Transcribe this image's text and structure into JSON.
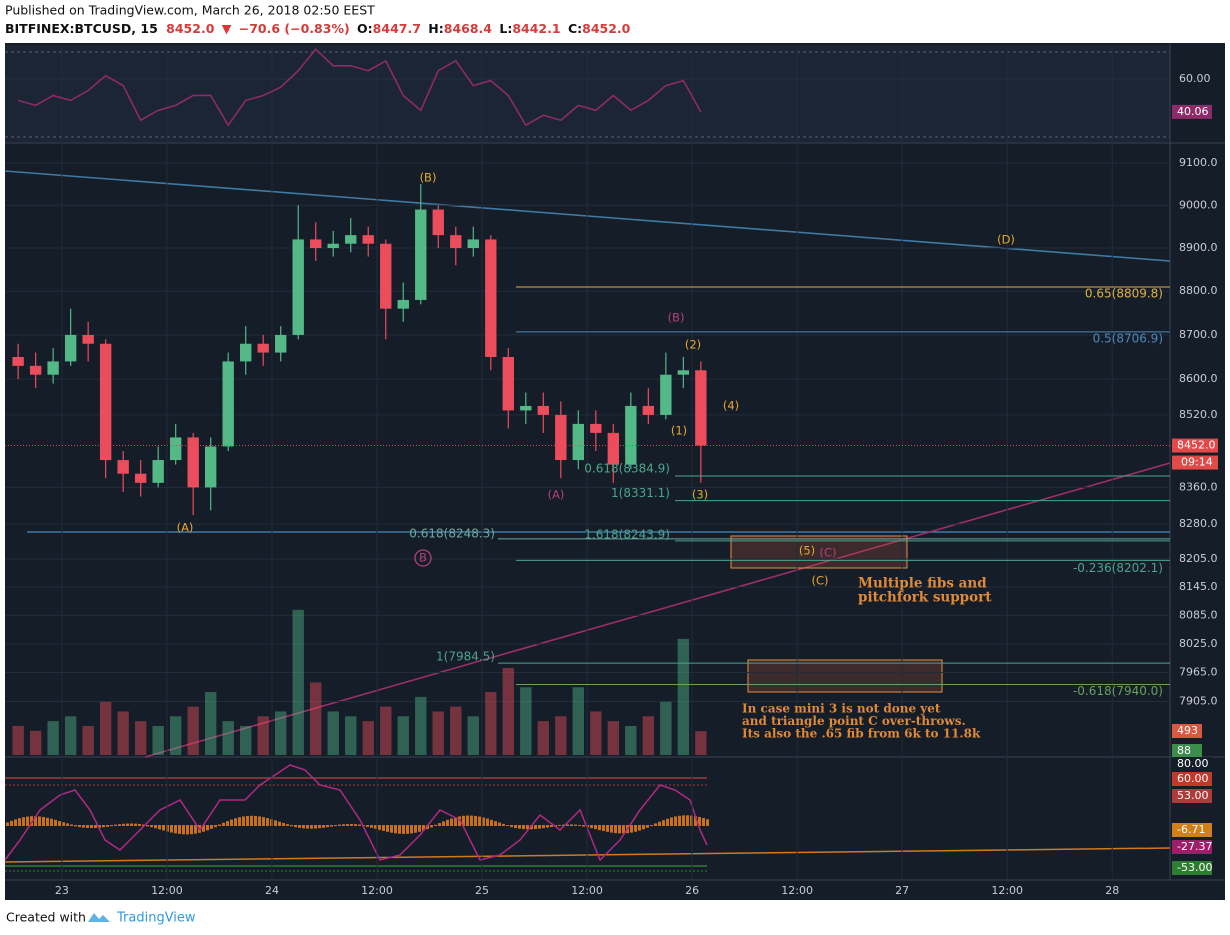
{
  "header": {
    "published": "Published on TradingView.com, March 26, 2018 02:50 EEST",
    "symbol": "BITFINEX:BTCUSD, 15",
    "price": "8452.0",
    "arrow": "▼",
    "change": "−70.6 (−0.83%)",
    "ohlc": [
      {
        "label": "O:",
        "value": "8447.7"
      },
      {
        "label": "H:",
        "value": "8468.4"
      },
      {
        "label": "L:",
        "value": "8442.1"
      },
      {
        "label": "C:",
        "value": "8452.0"
      }
    ]
  },
  "footer": {
    "created": "Created with",
    "brand": "TradingView"
  },
  "chart_data": {
    "type": "candlestick",
    "x": [
      -6,
      -4,
      -2,
      0,
      2,
      4,
      6,
      8,
      10,
      12,
      14,
      16,
      18,
      20,
      22,
      24,
      26,
      28,
      30,
      32,
      34,
      36,
      38,
      40,
      42,
      44,
      46,
      48,
      50,
      52,
      54,
      56,
      58,
      60,
      62,
      64,
      66,
      68,
      70,
      72
    ],
    "open": [
      8650,
      8630,
      8610,
      8640,
      8700,
      8680,
      8420,
      8390,
      8370,
      8420,
      8470,
      8360,
      8450,
      8640,
      8680,
      8660,
      8700,
      8920,
      8900,
      8910,
      8930,
      8910,
      8760,
      8780,
      8990,
      8930,
      8900,
      8920,
      8650,
      8530,
      8540,
      8520,
      8420,
      8500,
      8480,
      8410,
      8540,
      8520,
      8610,
      8620
    ],
    "high": [
      8680,
      8660,
      8670,
      8760,
      8730,
      8690,
      8440,
      8420,
      8450,
      8500,
      8480,
      8470,
      8660,
      8720,
      8700,
      8720,
      9000,
      8960,
      8940,
      8970,
      8950,
      8920,
      8820,
      9050,
      9000,
      8950,
      8950,
      8930,
      8670,
      8570,
      8570,
      8550,
      8530,
      8530,
      8500,
      8570,
      8580,
      8660,
      8650,
      8640
    ],
    "low": [
      8600,
      8580,
      8590,
      8630,
      8640,
      8380,
      8350,
      8340,
      8360,
      8410,
      8300,
      8310,
      8440,
      8610,
      8630,
      8640,
      8690,
      8870,
      8880,
      8890,
      8880,
      8690,
      8730,
      8770,
      8900,
      8860,
      8880,
      8620,
      8490,
      8500,
      8480,
      8380,
      8400,
      8440,
      8370,
      8400,
      8500,
      8510,
      8580,
      8370
    ],
    "close": [
      8630,
      8610,
      8640,
      8700,
      8680,
      8420,
      8390,
      8370,
      8420,
      8470,
      8360,
      8450,
      8640,
      8680,
      8660,
      8700,
      8920,
      8900,
      8910,
      8930,
      8910,
      8760,
      8780,
      8990,
      8930,
      8900,
      8920,
      8650,
      8530,
      8540,
      8520,
      8420,
      8500,
      8480,
      8410,
      8540,
      8520,
      8610,
      8620,
      8452
    ],
    "colors": {
      "up": "#53b987",
      "down": "#eb4d5c"
    },
    "xlim": [
      -6.5,
      126.6
    ],
    "xticks": [
      {
        "value": 0,
        "label": "23"
      },
      {
        "value": 12,
        "label": "12:00"
      },
      {
        "value": 24,
        "label": "24"
      },
      {
        "value": 36,
        "label": "12:00"
      },
      {
        "value": 48,
        "label": "25"
      },
      {
        "value": 60,
        "label": "12:00"
      },
      {
        "value": 72,
        "label": "26"
      },
      {
        "value": 84,
        "label": "12:00"
      },
      {
        "value": 96,
        "label": "27"
      },
      {
        "value": 108,
        "label": "12:00"
      },
      {
        "value": 120,
        "label": "28"
      }
    ],
    "ylim": [
      7791,
      9143
    ],
    "log_scale": true,
    "yticks": [
      {
        "value": 9100,
        "label": "9100.0"
      },
      {
        "value": 9000,
        "label": "9000.0"
      },
      {
        "value": 8900,
        "label": "8900.0"
      },
      {
        "value": 8800,
        "label": "8800.0"
      },
      {
        "value": 8700,
        "label": "8700.0"
      },
      {
        "value": 8600,
        "label": "8600.0"
      },
      {
        "value": 8520,
        "label": "8520.0"
      },
      {
        "value": 8360,
        "label": "8360.0"
      },
      {
        "value": 8280,
        "label": "8280.0"
      },
      {
        "value": 8205,
        "label": "8205.0"
      },
      {
        "value": 8145,
        "label": "8145.0"
      },
      {
        "value": 8085,
        "label": "8085.0"
      },
      {
        "value": 8025,
        "label": "8025.0"
      },
      {
        "value": 7965,
        "label": "7965.0"
      },
      {
        "value": 7905,
        "label": "7905.0"
      }
    ],
    "grid": true,
    "last_price": {
      "value": 8452,
      "label": "8452.0",
      "color": "#e24a4a"
    },
    "countdown": "09:14",
    "fibs": [
      {
        "label": "0.65(8809.8)",
        "value": 8809.8,
        "color": "#e0b040"
      },
      {
        "label": "0.5(8706.9)",
        "value": 8706.9,
        "color": "#4f88b8"
      },
      {
        "label": "0.618(8384.9)",
        "value": 8384.9,
        "color": "#4aa58a"
      },
      {
        "label": "1(8331.1)",
        "value": 8331.1,
        "color": "#4aa58a"
      },
      {
        "label": "0.618(8248.3)",
        "value": 8248.3,
        "color": "#6fa89a"
      },
      {
        "label": "1.618(8243.9)",
        "value": 8243.9,
        "color": "#4aa58a"
      },
      {
        "label": "-0.236(8202.1)",
        "value": 8202.1,
        "color": "#4aa58a"
      },
      {
        "label": "1(7984.5)",
        "value": 7984.5,
        "color": "#4aa58a"
      },
      {
        "label": "-0.618(7940.0)",
        "value": 7940.0,
        "color": "#6a9f5c"
      }
    ],
    "wave_labels": [
      {
        "text": "(B)",
        "color": "#e7a92f"
      },
      {
        "text": "(A)",
        "color": "#e7a92f"
      },
      {
        "text": "(D)",
        "color": "#e7a92f"
      },
      {
        "text": "(B)",
        "color": "#b5407a"
      },
      {
        "text": "(2)",
        "color": "#e7a92f"
      },
      {
        "text": "(4)",
        "color": "#e7a92f"
      },
      {
        "text": "(1)",
        "color": "#e7a92f"
      },
      {
        "text": "(3)",
        "color": "#e7a92f"
      },
      {
        "text": "(A)",
        "color": "#b5407a"
      },
      {
        "text": "B",
        "color": "#b5407a",
        "circled": true
      },
      {
        "text": "(5)",
        "color": "#e7a92f"
      },
      {
        "text": "(C)",
        "color": "#b5407a"
      },
      {
        "text": "(C)",
        "color": "#e7a92f"
      }
    ],
    "note_fibs": [
      "Multiple fibs and",
      "pitchfork support"
    ],
    "note_mini3": [
      "In case mini 3 is not done yet",
      "and triangle point C over-throws.",
      "Its also the .65 fib from 6k to 11.8k"
    ],
    "volume": {
      "values": [
        600,
        500,
        700,
        800,
        600,
        1100,
        900,
        700,
        600,
        800,
        1000,
        1300,
        700,
        600,
        800,
        900,
        3000,
        1500,
        900,
        800,
        700,
        1000,
        800,
        1200,
        900,
        1000,
        800,
        1300,
        1800,
        1400,
        700,
        800,
        1400,
        900,
        700,
        600,
        800,
        1100,
        2400,
        493
      ],
      "ylim": [
        0,
        3100
      ],
      "labels": [
        {
          "label": "493",
          "color": "#d9583f"
        },
        {
          "label": "88",
          "color": "#3c8c4c"
        }
      ]
    },
    "rsi": {
      "values": [
        47,
        44,
        50,
        47,
        53,
        62,
        56,
        35,
        41,
        44,
        50,
        50,
        32,
        47,
        50,
        55,
        65,
        78,
        68,
        68,
        65,
        71,
        50,
        41,
        65,
        71,
        56,
        59,
        50,
        32,
        38,
        35,
        44,
        41,
        50,
        41,
        47,
        56,
        59,
        40.06
      ],
      "ylim": [
        23,
        80.6
      ],
      "yticks": [
        {
          "value": 60,
          "label": "60.00"
        }
      ],
      "last_label": "40.06",
      "color": "#8e2a6a"
    },
    "oscillator_labels": [
      {
        "label": "80.00",
        "color": "#151d29"
      },
      {
        "label": "60.00",
        "color": "#c0392b"
      },
      {
        "label": "53.00",
        "color": "#b03a3a"
      },
      {
        "label": "-6.71",
        "color": "#d0801a"
      },
      {
        "label": "-27.37",
        "color": "#9c1f6a"
      },
      {
        "label": "-53.00",
        "color": "#2e7d32"
      }
    ]
  }
}
